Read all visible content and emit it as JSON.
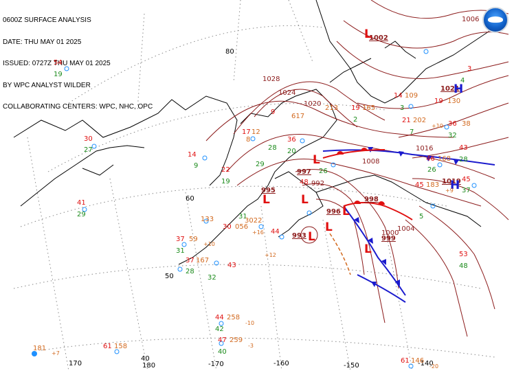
{
  "header": {
    "line1": "0600Z SURFACE ANALYSIS",
    "line2": "DATE: THU MAY 01 2025",
    "line3": "ISSUED: 0727Z THU MAY 01 2025",
    "line4": "BY WPC ANALYST WILDER",
    "line5": "COLLABORATING CENTERS: WPC, NHC, OPC"
  },
  "logo": {
    "icon": "noaa-logo-icon"
  },
  "colors": {
    "isobar": "#8b1a1a",
    "coast": "#000000",
    "grid": "#888888",
    "cold_front": "#1a1acd",
    "warm_front": "#e01010",
    "trough": "#d2691e",
    "low": "#e01010",
    "high": "#1a1acd",
    "temp": "#e01010",
    "dewpoint": "#1a8a1a",
    "pressure": "#d2691e",
    "station": "#1e90ff"
  },
  "grid_labels": {
    "lat_80": "80",
    "lat_60": "60",
    "lat_50": "50",
    "lat_40": "40",
    "lon_170": "170",
    "lon_180": "180",
    "lon_m170": "-170",
    "lon_m160": "-160",
    "lon_m150": "-150",
    "lon_m140": "-140"
  },
  "isobars": {
    "i1028": "1028",
    "i1024": "1024",
    "i1020": "1020",
    "i1016": "1016",
    "i1008": "1008",
    "i1006": "1006",
    "i1000": "1000",
    "i992": "992",
    "i1002": "1002",
    "i1021": "1021",
    "i1019": "1019",
    "i997": "997",
    "i995": "995",
    "i996": "996",
    "i998": "998",
    "i993": "993",
    "i999": "999",
    "i1004": "1004"
  },
  "pressure_centers": {
    "L": "L",
    "H": "H"
  },
  "stations": {
    "s54": "54",
    "s19a": "19",
    "s30": "30",
    "s27": "27",
    "s41": "41",
    "s29": "29",
    "s14a": "14",
    "s9a": "9",
    "s22": "22",
    "s19b": "19",
    "s17": "17",
    "s12": "12",
    "s9b": "9",
    "s617": "617",
    "s36a": "36",
    "s20": "20",
    "s28": "28",
    "s29b": "29",
    "s133": "133",
    "s30b": "30",
    "s056": "056",
    "s8": "8",
    "s37a": "37",
    "s59": "59",
    "s31": "31",
    "s37b": "37",
    "s167": "167",
    "s28b": "28",
    "s32": "32",
    "s43": "43",
    "s3022": "3022",
    "s44": "44",
    "s48": "48",
    "s26": "26",
    "s213": "213",
    "s19c": "19",
    "s165": "165",
    "s2": "2",
    "s14b": "14",
    "s109": "109",
    "s3": "3",
    "s21": "21",
    "s202": "202",
    "s7": "7",
    "s19d": "19",
    "s130": "130",
    "s36b": "36",
    "s38": "38",
    "s32b": "32",
    "s43b": "43",
    "s28c": "28",
    "s46": "46",
    "s168": "168",
    "s26b": "26",
    "s45a": "45",
    "s183": "183",
    "s45b": "45",
    "s37c": "37",
    "s53": "53",
    "s48b": "48",
    "s44b": "44",
    "s258": "258",
    "s42": "42",
    "s47": "47",
    "s259": "259",
    "s40": "40",
    "s181": "181",
    "s61a": "61",
    "s158": "158",
    "s61b": "61",
    "s146": "146",
    "s31b": "31",
    "s3b": "3",
    "s5": "5",
    "s4": "4"
  },
  "tendencies": {
    "t10a": "+10",
    "t16": "+16",
    "t12": "+12",
    "t10b": "-10",
    "t3": "-3",
    "t7": "+7",
    "t20": "-20",
    "t9": "+9",
    "t10c": "+10"
  }
}
